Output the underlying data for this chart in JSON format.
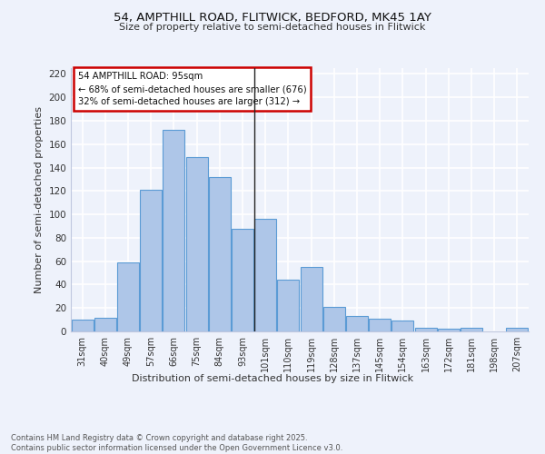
{
  "title1": "54, AMPTHILL ROAD, FLITWICK, BEDFORD, MK45 1AY",
  "title2": "Size of property relative to semi-detached houses in Flitwick",
  "xlabel": "Distribution of semi-detached houses by size in Flitwick",
  "ylabel": "Number of semi-detached properties",
  "categories": [
    "31sqm",
    "40sqm",
    "49sqm",
    "57sqm",
    "66sqm",
    "75sqm",
    "84sqm",
    "93sqm",
    "101sqm",
    "110sqm",
    "119sqm",
    "128sqm",
    "137sqm",
    "145sqm",
    "154sqm",
    "163sqm",
    "172sqm",
    "181sqm",
    "198sqm",
    "207sqm"
  ],
  "values": [
    10,
    12,
    59,
    121,
    172,
    149,
    132,
    88,
    96,
    44,
    55,
    21,
    13,
    11,
    9,
    3,
    2,
    3,
    0,
    3
  ],
  "bar_color": "#aec6e8",
  "bar_edge_color": "#5b9bd5",
  "property_bin_index": 7,
  "annotation_title": "54 AMPTHILL ROAD: 95sqm",
  "annotation_line1": "← 68% of semi-detached houses are smaller (676)",
  "annotation_line2": "32% of semi-detached houses are larger (312) →",
  "vline_color": "#222222",
  "annotation_box_color": "#ffffff",
  "annotation_box_edge": "#cc0000",
  "background_color": "#eef2fb",
  "grid_color": "#ffffff",
  "ylim": [
    0,
    225
  ],
  "yticks": [
    0,
    20,
    40,
    60,
    80,
    100,
    120,
    140,
    160,
    180,
    200,
    220
  ],
  "footer": "Contains HM Land Registry data © Crown copyright and database right 2025.\nContains public sector information licensed under the Open Government Licence v3.0."
}
